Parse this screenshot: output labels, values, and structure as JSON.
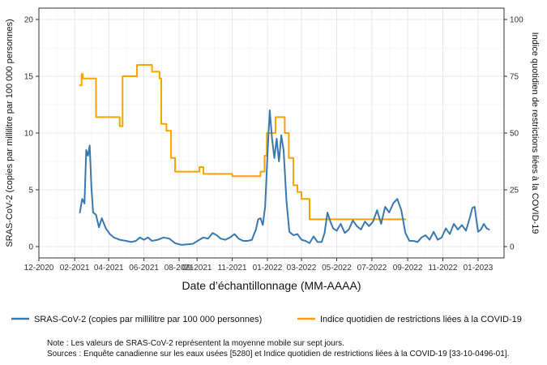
{
  "chart_data": {
    "type": "line",
    "xlabel": "Date d’échantillonnage (MM-AAAA)",
    "ylabel": "SRAS-CoV-2 (copies par millilitre par 100 000 personnes)",
    "y2label": "Indice quotidien de restrictions liées à la COVID-19",
    "x_range": [
      "2020-12-01",
      "2023-02-15"
    ],
    "ylim": [
      -1,
      21
    ],
    "y2lim": [
      -5,
      105
    ],
    "y_ticks": [
      0,
      5,
      10,
      15,
      20
    ],
    "y2_ticks": [
      0,
      25,
      50,
      75,
      100
    ],
    "x_ticks": [
      {
        "date": "2020-12-01",
        "label": "12-2020"
      },
      {
        "date": "2021-02-01",
        "label": "02-2021"
      },
      {
        "date": "2021-04-01",
        "label": "04-2021"
      },
      {
        "date": "2021-06-01",
        "label": "06-2021"
      },
      {
        "date": "2021-08-01",
        "label": "08-2021"
      },
      {
        "date": "2021-09-01",
        "label": "09-2021"
      },
      {
        "date": "2021-11-01",
        "label": "11-2021"
      },
      {
        "date": "2022-01-01",
        "label": "01-2022"
      },
      {
        "date": "2022-03-01",
        "label": "03-2022"
      },
      {
        "date": "2022-05-01",
        "label": "05-2022"
      },
      {
        "date": "2022-07-01",
        "label": "07-2022"
      },
      {
        "date": "2022-09-01",
        "label": "09-2022"
      },
      {
        "date": "2022-11-01",
        "label": "11-2022"
      },
      {
        "date": "2023-01-01",
        "label": "01-2023"
      }
    ],
    "grid": true,
    "legend_position": "bottom",
    "series": [
      {
        "name": "SRAS-CoV-2 (copies par millilitre par 100 000 personnes)",
        "axis": "left",
        "color": "#3A78B0",
        "points": [
          [
            "2021-02-10",
            3.0
          ],
          [
            "2021-02-14",
            4.2
          ],
          [
            "2021-02-18",
            3.8
          ],
          [
            "2021-02-21",
            8.5
          ],
          [
            "2021-02-24",
            8.0
          ],
          [
            "2021-02-27",
            8.9
          ],
          [
            "2021-03-02",
            5.2
          ],
          [
            "2021-03-05",
            3.0
          ],
          [
            "2021-03-10",
            2.8
          ],
          [
            "2021-03-15",
            1.7
          ],
          [
            "2021-03-20",
            2.5
          ],
          [
            "2021-03-27",
            1.6
          ],
          [
            "2021-04-03",
            1.1
          ],
          [
            "2021-04-10",
            0.8
          ],
          [
            "2021-04-20",
            0.6
          ],
          [
            "2021-05-01",
            0.5
          ],
          [
            "2021-05-10",
            0.4
          ],
          [
            "2021-05-18",
            0.5
          ],
          [
            "2021-05-25",
            0.8
          ],
          [
            "2021-06-01",
            0.6
          ],
          [
            "2021-06-08",
            0.8
          ],
          [
            "2021-06-15",
            0.5
          ],
          [
            "2021-06-25",
            0.6
          ],
          [
            "2021-07-05",
            0.8
          ],
          [
            "2021-07-15",
            0.7
          ],
          [
            "2021-07-25",
            0.3
          ],
          [
            "2021-08-05",
            0.15
          ],
          [
            "2021-08-15",
            0.2
          ],
          [
            "2021-08-25",
            0.25
          ],
          [
            "2021-09-05",
            0.6
          ],
          [
            "2021-09-12",
            0.8
          ],
          [
            "2021-09-20",
            0.7
          ],
          [
            "2021-09-28",
            1.2
          ],
          [
            "2021-10-05",
            1.0
          ],
          [
            "2021-10-12",
            0.7
          ],
          [
            "2021-10-20",
            0.6
          ],
          [
            "2021-10-28",
            0.8
          ],
          [
            "2021-11-05",
            1.1
          ],
          [
            "2021-11-12",
            0.7
          ],
          [
            "2021-11-20",
            0.5
          ],
          [
            "2021-11-28",
            0.5
          ],
          [
            "2021-12-05",
            0.6
          ],
          [
            "2021-12-12",
            1.5
          ],
          [
            "2021-12-16",
            2.4
          ],
          [
            "2021-12-20",
            2.5
          ],
          [
            "2021-12-24",
            1.9
          ],
          [
            "2021-12-28",
            3.5
          ],
          [
            "2022-01-01",
            8.0
          ],
          [
            "2022-01-05",
            12.0
          ],
          [
            "2022-01-09",
            9.5
          ],
          [
            "2022-01-13",
            7.8
          ],
          [
            "2022-01-17",
            9.5
          ],
          [
            "2022-01-21",
            7.5
          ],
          [
            "2022-01-25",
            9.8
          ],
          [
            "2022-01-29",
            8.5
          ],
          [
            "2022-02-03",
            4.0
          ],
          [
            "2022-02-08",
            1.3
          ],
          [
            "2022-02-15",
            1.0
          ],
          [
            "2022-02-22",
            1.1
          ],
          [
            "2022-03-01",
            0.6
          ],
          [
            "2022-03-08",
            0.5
          ],
          [
            "2022-03-15",
            0.3
          ],
          [
            "2022-03-22",
            0.9
          ],
          [
            "2022-03-29",
            0.4
          ],
          [
            "2022-04-05",
            0.4
          ],
          [
            "2022-04-10",
            1.2
          ],
          [
            "2022-04-15",
            3.0
          ],
          [
            "2022-04-20",
            2.2
          ],
          [
            "2022-04-25",
            1.6
          ],
          [
            "2022-05-01",
            1.4
          ],
          [
            "2022-05-08",
            2.0
          ],
          [
            "2022-05-15",
            1.2
          ],
          [
            "2022-05-22",
            1.5
          ],
          [
            "2022-05-29",
            2.3
          ],
          [
            "2022-06-05",
            1.8
          ],
          [
            "2022-06-12",
            1.5
          ],
          [
            "2022-06-19",
            2.2
          ],
          [
            "2022-06-26",
            1.8
          ],
          [
            "2022-07-03",
            2.2
          ],
          [
            "2022-07-10",
            3.2
          ],
          [
            "2022-07-17",
            2.0
          ],
          [
            "2022-07-24",
            3.5
          ],
          [
            "2022-07-31",
            3.0
          ],
          [
            "2022-08-07",
            3.8
          ],
          [
            "2022-08-14",
            4.2
          ],
          [
            "2022-08-21",
            3.2
          ],
          [
            "2022-08-28",
            1.2
          ],
          [
            "2022-09-04",
            0.5
          ],
          [
            "2022-09-11",
            0.5
          ],
          [
            "2022-09-18",
            0.4
          ],
          [
            "2022-09-25",
            0.8
          ],
          [
            "2022-10-02",
            1.0
          ],
          [
            "2022-10-09",
            0.6
          ],
          [
            "2022-10-16",
            1.3
          ],
          [
            "2022-10-23",
            0.6
          ],
          [
            "2022-10-30",
            0.8
          ],
          [
            "2022-11-06",
            1.6
          ],
          [
            "2022-11-13",
            1.1
          ],
          [
            "2022-11-20",
            2.0
          ],
          [
            "2022-11-27",
            1.5
          ],
          [
            "2022-12-04",
            1.9
          ],
          [
            "2022-12-11",
            1.4
          ],
          [
            "2022-12-18",
            2.6
          ],
          [
            "2022-12-22",
            3.4
          ],
          [
            "2022-12-26",
            3.5
          ],
          [
            "2023-01-01",
            1.3
          ],
          [
            "2023-01-06",
            1.5
          ],
          [
            "2023-01-11",
            2.0
          ],
          [
            "2023-01-16",
            1.6
          ],
          [
            "2023-01-20",
            1.5
          ]
        ]
      },
      {
        "name": "Indice quotidien de restrictions liées à la COVID-19",
        "axis": "right",
        "color": "#F5A400",
        "points": [
          [
            "2021-02-10",
            71
          ],
          [
            "2021-02-13",
            71
          ],
          [
            "2021-02-13",
            76
          ],
          [
            "2021-02-15",
            76
          ],
          [
            "2021-02-15",
            74
          ],
          [
            "2021-03-10",
            74
          ],
          [
            "2021-03-10",
            57
          ],
          [
            "2021-04-20",
            57
          ],
          [
            "2021-04-20",
            53
          ],
          [
            "2021-04-25",
            53
          ],
          [
            "2021-04-25",
            75
          ],
          [
            "2021-05-20",
            75
          ],
          [
            "2021-05-20",
            80
          ],
          [
            "2021-06-15",
            80
          ],
          [
            "2021-06-15",
            77
          ],
          [
            "2021-06-28",
            77
          ],
          [
            "2021-06-28",
            74
          ],
          [
            "2021-07-01",
            74
          ],
          [
            "2021-07-01",
            54
          ],
          [
            "2021-07-10",
            54
          ],
          [
            "2021-07-10",
            51
          ],
          [
            "2021-07-18",
            51
          ],
          [
            "2021-07-18",
            39
          ],
          [
            "2021-07-25",
            39
          ],
          [
            "2021-07-25",
            33
          ],
          [
            "2021-09-05",
            33
          ],
          [
            "2021-09-05",
            35
          ],
          [
            "2021-09-12",
            35
          ],
          [
            "2021-09-12",
            32
          ],
          [
            "2021-11-01",
            32
          ],
          [
            "2021-11-01",
            31
          ],
          [
            "2021-12-20",
            31
          ],
          [
            "2021-12-20",
            33
          ],
          [
            "2021-12-27",
            33
          ],
          [
            "2021-12-27",
            40
          ],
          [
            "2021-12-31",
            40
          ],
          [
            "2021-12-31",
            50
          ],
          [
            "2022-01-15",
            50
          ],
          [
            "2022-01-15",
            57
          ],
          [
            "2022-01-31",
            57
          ],
          [
            "2022-01-31",
            50
          ],
          [
            "2022-02-07",
            50
          ],
          [
            "2022-02-07",
            39
          ],
          [
            "2022-02-15",
            39
          ],
          [
            "2022-02-15",
            27
          ],
          [
            "2022-02-22",
            27
          ],
          [
            "2022-02-22",
            24
          ],
          [
            "2022-03-01",
            24
          ],
          [
            "2022-03-01",
            21
          ],
          [
            "2022-03-15",
            21
          ],
          [
            "2022-03-15",
            12
          ],
          [
            "2022-08-28",
            12
          ]
        ]
      }
    ]
  },
  "notes": {
    "line1": "Note : Les valeurs de SRAS-CoV-2 représentent la moyenne mobile sur sept jours.",
    "line2": "Sources : Enquête canadienne sur les eaux usées [5280] et Indice quotidien de restrictions liées à la COVID-19 [33-10-0496-01]."
  }
}
